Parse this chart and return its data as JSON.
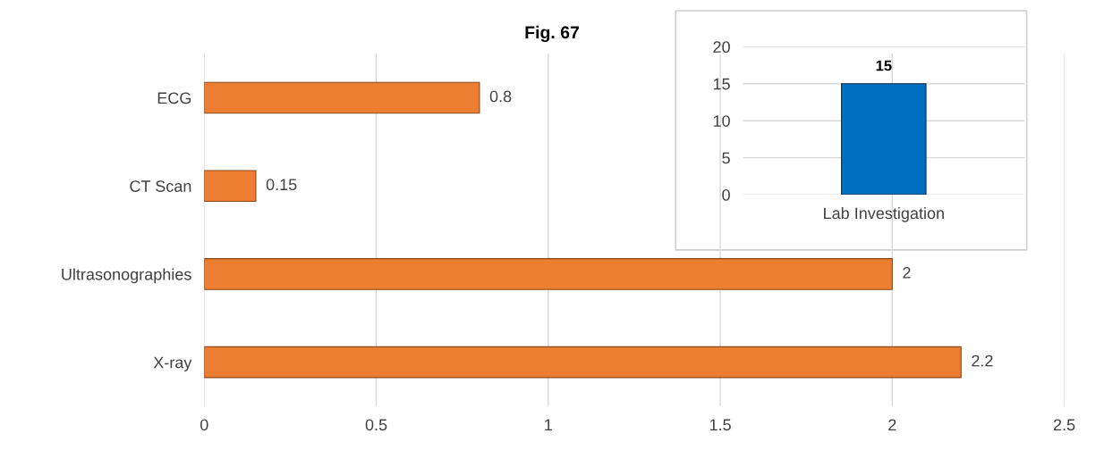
{
  "chart_data": [
    {
      "type": "bar",
      "title": "Fig. 67",
      "orientation": "horizontal",
      "categories": [
        "ECG",
        "CT Scan",
        "Ultrasonographies",
        "X-ray"
      ],
      "values": [
        0.8,
        0.15,
        2,
        2.2
      ],
      "color": "#ed7d31",
      "xlim": [
        0,
        2.5
      ],
      "xticks": [
        0,
        0.5,
        1,
        1.5,
        2,
        2.5
      ],
      "grid": "x",
      "data_labels": true
    },
    {
      "type": "bar",
      "categories": [
        "Lab Investigation"
      ],
      "values": [
        15
      ],
      "color": "#0070c0",
      "ylim": [
        0,
        20
      ],
      "yticks": [
        0,
        5,
        10,
        15,
        20
      ],
      "grid": "y",
      "data_labels": true
    }
  ]
}
